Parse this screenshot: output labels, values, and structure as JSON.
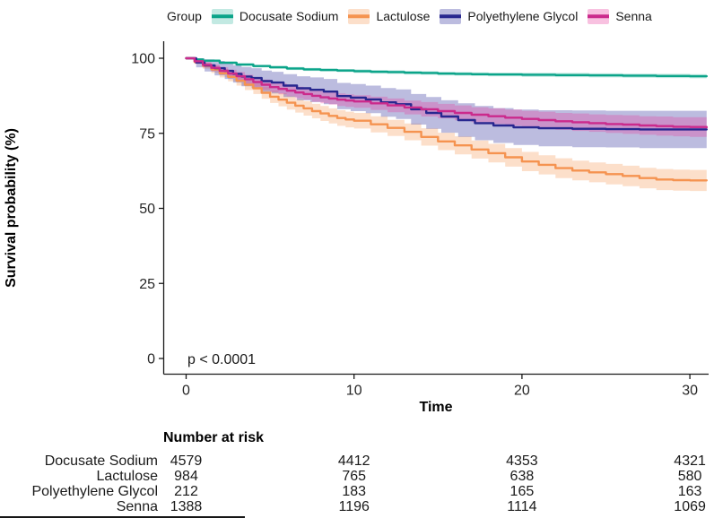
{
  "legend": {
    "title": "Group",
    "items": [
      {
        "label": "Docusate Sodium",
        "line_color": "#0ba489",
        "band_color": "rgba(13,166,140,0.25)"
      },
      {
        "label": "Lactulose",
        "line_color": "#f59350",
        "band_color": "rgba(245,150,80,0.30)"
      },
      {
        "label": "Polyethylene Glycol",
        "line_color": "#27278f",
        "band_color": "rgba(88,88,176,0.40)"
      },
      {
        "label": "Senna",
        "line_color": "#cb2a8c",
        "band_color": "rgba(232,62,158,0.32)"
      }
    ]
  },
  "axes": {
    "y_title": "Survival probability (%)",
    "x_title": "Time",
    "y_tick_labels": [
      "100",
      "75",
      "50",
      "25",
      "0"
    ],
    "y_tick_values": [
      100,
      75,
      50,
      25,
      0
    ],
    "x_tick_labels": [
      "0",
      "10",
      "20",
      "30"
    ],
    "x_tick_values": [
      0,
      10,
      20,
      30
    ]
  },
  "annotation": {
    "p_value": "p < 0.0001"
  },
  "chart_data": {
    "type": "line",
    "subtype": "kaplan-meier-step-with-confidence-bands",
    "title": "",
    "xlabel": "Time",
    "ylabel": "Survival probability (%)",
    "xlim": [
      0,
      31
    ],
    "ylim": [
      0,
      100
    ],
    "grid": false,
    "legend_position": "top",
    "p_value_annotation": "p < 0.0001",
    "series": [
      {
        "name": "Docusate Sodium",
        "line_color": "#0ba489",
        "band_color": "rgba(13,166,140,0.25)",
        "points": [
          [
            0,
            100,
            100,
            100
          ],
          [
            0.5,
            99.6,
            99.4,
            99.8
          ],
          [
            1,
            99.2,
            98.9,
            99.5
          ],
          [
            2,
            98.5,
            98.1,
            98.9
          ],
          [
            3,
            97.9,
            97.5,
            98.3
          ],
          [
            4,
            97.4,
            97.0,
            97.8
          ],
          [
            5,
            97.0,
            96.5,
            97.5
          ],
          [
            6,
            96.6,
            96.1,
            97.1
          ],
          [
            7,
            96.3,
            95.8,
            96.8
          ],
          [
            8,
            96.1,
            95.6,
            96.6
          ],
          [
            9,
            95.9,
            95.4,
            96.4
          ],
          [
            10,
            95.7,
            95.1,
            96.3
          ],
          [
            11,
            95.5,
            94.9,
            96.1
          ],
          [
            12,
            95.4,
            94.8,
            96.0
          ],
          [
            13,
            95.2,
            94.6,
            95.8
          ],
          [
            14,
            95.1,
            94.5,
            95.7
          ],
          [
            15,
            94.9,
            94.3,
            95.5
          ],
          [
            16,
            94.8,
            94.2,
            95.4
          ],
          [
            17,
            94.7,
            94.1,
            95.3
          ],
          [
            18,
            94.6,
            94.0,
            95.2
          ],
          [
            20,
            94.5,
            93.8,
            95.2
          ],
          [
            22,
            94.4,
            93.7,
            95.1
          ],
          [
            24,
            94.3,
            93.6,
            95.0
          ],
          [
            26,
            94.2,
            93.5,
            94.9
          ],
          [
            28,
            94.1,
            93.4,
            94.8
          ],
          [
            30,
            94.0,
            93.3,
            94.7
          ],
          [
            31,
            94.0,
            93.3,
            94.7
          ]
        ]
      },
      {
        "name": "Lactulose",
        "line_color": "#f59350",
        "band_color": "rgba(245,150,80,0.30)",
        "points": [
          [
            0,
            100,
            100,
            100
          ],
          [
            0.5,
            98.8,
            98.1,
            99.5
          ],
          [
            1,
            97.5,
            96.5,
            98.5
          ],
          [
            1.5,
            96.3,
            95.1,
            97.5
          ],
          [
            2,
            95.0,
            93.6,
            96.4
          ],
          [
            2.5,
            93.8,
            92.3,
            95.3
          ],
          [
            3,
            92.5,
            90.9,
            94.1
          ],
          [
            3.5,
            91.2,
            89.4,
            93.0
          ],
          [
            4,
            90.0,
            88.1,
            91.9
          ],
          [
            4.5,
            88.5,
            86.5,
            90.5
          ],
          [
            5,
            87.2,
            85.1,
            89.3
          ],
          [
            5.5,
            86.2,
            84.0,
            88.4
          ],
          [
            6,
            85.2,
            82.9,
            87.5
          ],
          [
            6.5,
            84.2,
            81.9,
            86.5
          ],
          [
            7,
            83.3,
            80.9,
            85.7
          ],
          [
            7.5,
            82.4,
            80.0,
            84.8
          ],
          [
            8,
            81.6,
            79.1,
            84.1
          ],
          [
            8.5,
            80.8,
            78.3,
            83.3
          ],
          [
            9,
            80.1,
            77.5,
            82.7
          ],
          [
            9.5,
            79.6,
            77.0,
            82.2
          ],
          [
            10,
            79.2,
            76.6,
            81.8
          ],
          [
            11,
            78.0,
            75.3,
            80.7
          ],
          [
            12,
            76.8,
            74.1,
            79.5
          ],
          [
            13,
            75.5,
            72.7,
            78.3
          ],
          [
            14,
            73.8,
            70.9,
            76.7
          ],
          [
            15,
            72.3,
            69.4,
            75.2
          ],
          [
            16,
            71.0,
            68.0,
            74.0
          ],
          [
            17,
            69.6,
            66.6,
            72.6
          ],
          [
            18,
            68.4,
            65.3,
            71.5
          ],
          [
            19,
            67.0,
            63.9,
            70.1
          ],
          [
            20,
            65.6,
            62.4,
            68.8
          ],
          [
            21,
            64.5,
            61.3,
            67.7
          ],
          [
            22,
            63.4,
            60.1,
            66.7
          ],
          [
            23,
            62.6,
            59.3,
            65.9
          ],
          [
            24,
            62.0,
            58.7,
            65.3
          ],
          [
            25,
            61.4,
            58.0,
            64.8
          ],
          [
            26,
            60.8,
            57.4,
            64.2
          ],
          [
            27,
            60.1,
            56.7,
            63.5
          ],
          [
            28,
            59.6,
            56.1,
            63.1
          ],
          [
            29,
            59.4,
            55.9,
            62.9
          ],
          [
            30,
            59.3,
            55.8,
            62.8
          ],
          [
            31,
            59.3,
            55.8,
            62.8
          ]
        ]
      },
      {
        "name": "Polyethylene Glycol",
        "line_color": "#27278f",
        "band_color": "rgba(88,88,176,0.40)",
        "points": [
          [
            0,
            100,
            100,
            100
          ],
          [
            0.6,
            98.6,
            97.0,
            100
          ],
          [
            1.1,
            97.6,
            95.6,
            99.6
          ],
          [
            1.7,
            96.7,
            94.3,
            99.1
          ],
          [
            2.3,
            95.8,
            93.1,
            98.5
          ],
          [
            2.8,
            94.8,
            91.9,
            97.7
          ],
          [
            3.3,
            93.9,
            90.7,
            97.1
          ],
          [
            3.9,
            93.4,
            90.1,
            96.7
          ],
          [
            4.5,
            92.4,
            88.9,
            95.9
          ],
          [
            5.1,
            91.9,
            88.3,
            95.5
          ],
          [
            5.8,
            90.9,
            87.1,
            94.7
          ],
          [
            6.6,
            90.0,
            86.0,
            94.0
          ],
          [
            7.4,
            89.5,
            85.4,
            93.6
          ],
          [
            8.2,
            88.9,
            84.7,
            93.1
          ],
          [
            9,
            87.4,
            83.0,
            91.8
          ],
          [
            9.8,
            86.9,
            82.4,
            91.4
          ],
          [
            10.7,
            86.3,
            81.7,
            90.9
          ],
          [
            11.6,
            85.3,
            80.5,
            90.1
          ],
          [
            12.5,
            84.7,
            79.8,
            89.6
          ],
          [
            13.4,
            83.0,
            77.9,
            88.1
          ],
          [
            14.3,
            81.8,
            76.5,
            87.1
          ],
          [
            15.2,
            80.6,
            75.2,
            86.0
          ],
          [
            16.2,
            79.4,
            73.8,
            85.0
          ],
          [
            17.2,
            78.4,
            72.7,
            84.1
          ],
          [
            18.3,
            77.6,
            71.8,
            83.4
          ],
          [
            19.5,
            77.0,
            71.1,
            82.9
          ],
          [
            21,
            76.7,
            70.7,
            82.7
          ],
          [
            23,
            76.5,
            70.4,
            82.6
          ],
          [
            25,
            76.4,
            70.3,
            82.5
          ],
          [
            27,
            76.3,
            70.1,
            82.5
          ],
          [
            29,
            76.3,
            70.1,
            82.5
          ],
          [
            31,
            76.3,
            70.1,
            82.5
          ]
        ]
      },
      {
        "name": "Senna",
        "line_color": "#cb2a8c",
        "band_color": "rgba(232,62,158,0.32)",
        "points": [
          [
            0,
            100,
            100,
            100
          ],
          [
            0.5,
            99.0,
            98.2,
            99.8
          ],
          [
            1,
            97.8,
            96.9,
            98.7
          ],
          [
            1.5,
            96.8,
            95.7,
            97.9
          ],
          [
            2,
            95.8,
            94.6,
            97.0
          ],
          [
            2.5,
            94.9,
            93.6,
            96.2
          ],
          [
            3,
            94.0,
            92.6,
            95.4
          ],
          [
            3.5,
            93.0,
            91.5,
            94.5
          ],
          [
            4,
            92.1,
            90.5,
            93.7
          ],
          [
            4.5,
            91.2,
            89.5,
            92.9
          ],
          [
            5,
            90.4,
            88.7,
            92.1
          ],
          [
            5.5,
            89.8,
            88.0,
            91.6
          ],
          [
            6,
            89.2,
            87.4,
            91.0
          ],
          [
            6.5,
            88.6,
            86.7,
            90.5
          ],
          [
            7,
            88.1,
            86.2,
            90.0
          ],
          [
            7.5,
            87.5,
            85.5,
            89.5
          ],
          [
            8,
            87.0,
            85.0,
            89.0
          ],
          [
            8.5,
            86.6,
            84.6,
            88.6
          ],
          [
            9,
            86.2,
            84.1,
            88.3
          ],
          [
            9.5,
            85.9,
            83.8,
            88.0
          ],
          [
            10,
            85.6,
            83.5,
            87.7
          ],
          [
            11,
            85.0,
            82.8,
            87.2
          ],
          [
            12,
            84.3,
            82.0,
            86.6
          ],
          [
            13,
            83.6,
            81.3,
            85.9
          ],
          [
            14,
            83.0,
            80.6,
            85.4
          ],
          [
            15,
            82.4,
            80.0,
            84.8
          ],
          [
            16,
            81.8,
            79.3,
            84.3
          ],
          [
            17,
            81.2,
            78.7,
            83.7
          ],
          [
            18,
            80.7,
            78.1,
            83.3
          ],
          [
            19,
            80.2,
            77.5,
            82.9
          ],
          [
            20,
            79.8,
            77.1,
            82.5
          ],
          [
            21,
            79.4,
            76.6,
            82.2
          ],
          [
            22,
            79.0,
            76.2,
            81.8
          ],
          [
            23,
            78.7,
            75.8,
            81.6
          ],
          [
            24,
            78.4,
            75.5,
            81.3
          ],
          [
            25,
            78.1,
            75.1,
            81.1
          ],
          [
            26,
            77.9,
            74.8,
            81.0
          ],
          [
            27,
            77.6,
            74.5,
            80.7
          ],
          [
            28,
            77.4,
            74.2,
            80.6
          ],
          [
            29,
            77.2,
            74.0,
            80.4
          ],
          [
            30,
            77.1,
            73.8,
            80.4
          ],
          [
            31,
            77.0,
            73.7,
            80.3
          ]
        ]
      }
    ]
  },
  "risk_table": {
    "title": "Number at risk",
    "time_points": [
      0,
      10,
      20,
      30
    ],
    "rows": [
      {
        "label": "Docusate Sodium",
        "values": [
          "4579",
          "4412",
          "4353",
          "4321"
        ]
      },
      {
        "label": "Lactulose",
        "values": [
          "984",
          "765",
          "638",
          "580"
        ]
      },
      {
        "label": "Polyethylene Glycol",
        "values": [
          "212",
          "183",
          "165",
          "163"
        ]
      },
      {
        "label": "Senna",
        "values": [
          "1388",
          "1196",
          "1114",
          "1069"
        ]
      }
    ]
  }
}
